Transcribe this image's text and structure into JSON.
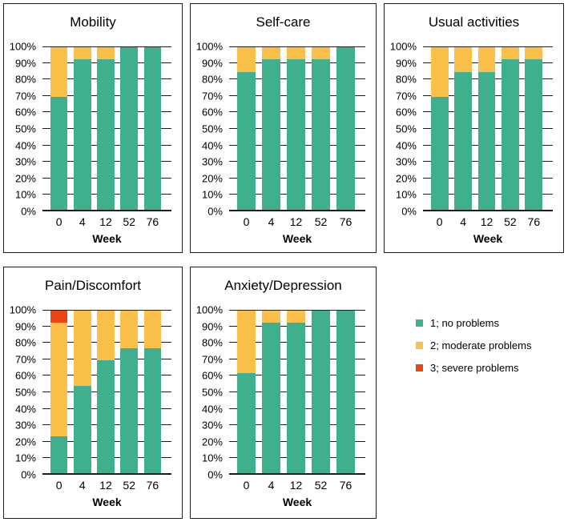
{
  "figure": {
    "background": "#ffffff",
    "border_color": "#1d1d1d"
  },
  "legend": {
    "items": [
      {
        "label": "1; no problems",
        "color": "#3FAF8E"
      },
      {
        "label": "2; moderate problems",
        "color": "#FBC04A"
      },
      {
        "label": "3; severe problems",
        "color": "#EA4517"
      }
    ]
  },
  "chart_data": [
    {
      "type": "bar",
      "stacked": true,
      "title": "Mobility",
      "categories": [
        "0",
        "4",
        "12",
        "52",
        "76"
      ],
      "xlabel": "Week",
      "ylim": [
        0,
        100
      ],
      "ytick_step": 10,
      "ytick_labels": [
        "0%",
        "10%",
        "20%",
        "30%",
        "40%",
        "50%",
        "60%",
        "70%",
        "80%",
        "90%",
        "100%"
      ],
      "grid": true,
      "series": [
        {
          "name": "1; no problems",
          "color": "#3FAF8E",
          "values": [
            69.2,
            92.3,
            92.3,
            100,
            100
          ]
        },
        {
          "name": "2; moderate problems",
          "color": "#FBC04A",
          "values": [
            30.8,
            7.7,
            7.7,
            0,
            0
          ]
        },
        {
          "name": "3; severe problems",
          "color": "#EA4517",
          "values": [
            0,
            0,
            0,
            0,
            0
          ]
        }
      ]
    },
    {
      "type": "bar",
      "stacked": true,
      "title": "Self-care",
      "categories": [
        "0",
        "4",
        "12",
        "52",
        "76"
      ],
      "xlabel": "Week",
      "ylim": [
        0,
        100
      ],
      "ytick_step": 10,
      "ytick_labels": [
        "0%",
        "10%",
        "20%",
        "30%",
        "40%",
        "50%",
        "60%",
        "70%",
        "80%",
        "90%",
        "100%"
      ],
      "grid": true,
      "series": [
        {
          "name": "1; no problems",
          "color": "#3FAF8E",
          "values": [
            84.6,
            92.3,
            92.3,
            92.3,
            100
          ]
        },
        {
          "name": "2; moderate problems",
          "color": "#FBC04A",
          "values": [
            15.4,
            7.7,
            7.7,
            7.7,
            0
          ]
        },
        {
          "name": "3; severe problems",
          "color": "#EA4517",
          "values": [
            0,
            0,
            0,
            0,
            0
          ]
        }
      ]
    },
    {
      "type": "bar",
      "stacked": true,
      "title": "Usual activities",
      "categories": [
        "0",
        "4",
        "12",
        "52",
        "76"
      ],
      "xlabel": "Week",
      "ylim": [
        0,
        100
      ],
      "ytick_step": 10,
      "ytick_labels": [
        "0%",
        "10%",
        "20%",
        "30%",
        "40%",
        "50%",
        "60%",
        "70%",
        "80%",
        "90%",
        "100%"
      ],
      "grid": true,
      "series": [
        {
          "name": "1; no problems",
          "color": "#3FAF8E",
          "values": [
            69.2,
            84.6,
            84.6,
            92.3,
            92.3
          ]
        },
        {
          "name": "2; moderate problems",
          "color": "#FBC04A",
          "values": [
            30.8,
            15.4,
            15.4,
            7.7,
            7.7
          ]
        },
        {
          "name": "3; severe problems",
          "color": "#EA4517",
          "values": [
            0,
            0,
            0,
            0,
            0
          ]
        }
      ]
    },
    {
      "type": "bar",
      "stacked": true,
      "title": "Pain/Discomfort",
      "categories": [
        "0",
        "4",
        "12",
        "52",
        "76"
      ],
      "xlabel": "Week",
      "ylim": [
        0,
        100
      ],
      "ytick_step": 10,
      "ytick_labels": [
        "0%",
        "10%",
        "20%",
        "30%",
        "40%",
        "50%",
        "60%",
        "70%",
        "80%",
        "90%",
        "100%"
      ],
      "grid": true,
      "series": [
        {
          "name": "1; no problems",
          "color": "#3FAF8E",
          "values": [
            23.1,
            53.8,
            69.2,
            76.9,
            76.9
          ]
        },
        {
          "name": "2; moderate problems",
          "color": "#FBC04A",
          "values": [
            69.2,
            46.2,
            30.8,
            23.1,
            23.1
          ]
        },
        {
          "name": "3; severe problems",
          "color": "#EA4517",
          "values": [
            7.7,
            0,
            0,
            0,
            0
          ]
        }
      ]
    },
    {
      "type": "bar",
      "stacked": true,
      "title": "Anxiety/Depression",
      "categories": [
        "0",
        "4",
        "12",
        "52",
        "76"
      ],
      "xlabel": "Week",
      "ylim": [
        0,
        100
      ],
      "ytick_step": 10,
      "ytick_labels": [
        "0%",
        "10%",
        "20%",
        "30%",
        "40%",
        "50%",
        "60%",
        "70%",
        "80%",
        "90%",
        "100%"
      ],
      "grid": true,
      "series": [
        {
          "name": "1; no problems",
          "color": "#3FAF8E",
          "values": [
            61.5,
            92.3,
            92.3,
            100,
            100
          ]
        },
        {
          "name": "2; moderate problems",
          "color": "#FBC04A",
          "values": [
            38.5,
            7.7,
            7.7,
            0,
            0
          ]
        },
        {
          "name": "3; severe problems",
          "color": "#EA4517",
          "values": [
            0,
            0,
            0,
            0,
            0
          ]
        }
      ]
    }
  ]
}
